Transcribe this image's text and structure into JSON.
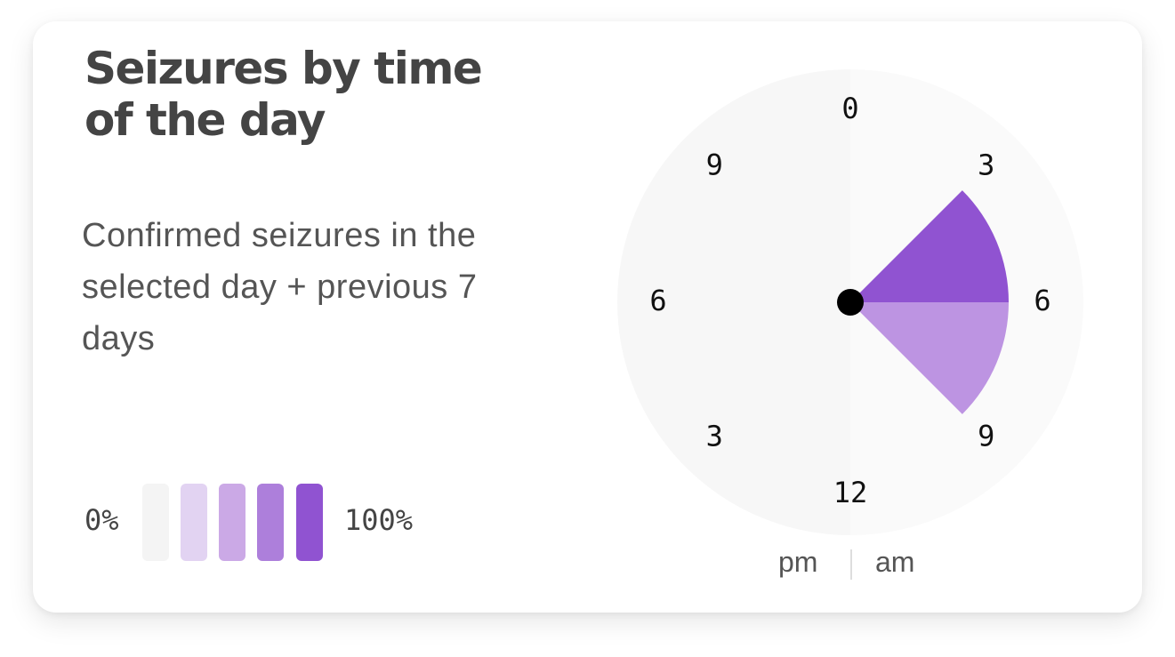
{
  "card": {
    "title": "Seizures by time of the day",
    "subtitle": "Confirmed seizures in the selected day + previous 7 days"
  },
  "legend": {
    "min_label": "0%",
    "max_label": "100%",
    "swatches": [
      "#f4f4f4",
      "#e2d3f2",
      "#cba9e6",
      "#ad7fdb",
      "#9053d1"
    ]
  },
  "chart_data": {
    "type": "radial",
    "hour_labels": [
      {
        "label": "0",
        "hour": 0
      },
      {
        "label": "3",
        "hour": 3
      },
      {
        "label": "6",
        "hour": 6
      },
      {
        "label": "9",
        "hour": 9
      },
      {
        "label": "12",
        "hour": 12
      },
      {
        "label": "3",
        "hour": 15
      },
      {
        "label": "6",
        "hour": 18
      },
      {
        "label": "9",
        "hour": 21
      }
    ],
    "half_labels": {
      "pm": "pm",
      "am": "am"
    },
    "segments": [
      {
        "start_hour": 3,
        "end_hour": 6,
        "share_pct": 100,
        "color": "#9053d1"
      },
      {
        "start_hour": 6,
        "end_hour": 9,
        "share_pct": 60,
        "color": "#bd94e2"
      }
    ],
    "colors": {
      "pm_face": "#f7f7f7",
      "am_face": "#fafafa",
      "center_dot": "#000000"
    }
  }
}
